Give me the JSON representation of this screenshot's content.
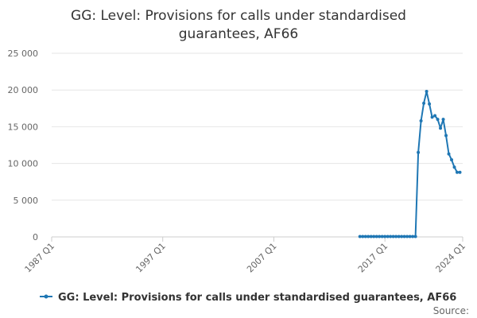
{
  "chart_data": {
    "type": "line",
    "title_lines": [
      "GG: Level: Provisions for calls under standardised",
      "guarantees, AF66"
    ],
    "xlabel": "",
    "ylabel": "",
    "x_range": [
      "1987 Q1",
      "2024 Q1"
    ],
    "x_tick_labels": [
      "1987 Q1",
      "1997 Q1",
      "2007 Q1",
      "2017 Q1",
      "2024 Q1"
    ],
    "y_ticks": [
      0,
      5000,
      10000,
      15000,
      20000,
      25000
    ],
    "y_tick_labels": [
      "0",
      "5 000",
      "10 000",
      "15 000",
      "20 000",
      "25 000"
    ],
    "ylim": [
      0,
      25000
    ],
    "grid": true,
    "legend_position": "bottom-center",
    "source_label": "Source:",
    "series": [
      {
        "name": "GG: Level: Provisions for calls under standardised guarantees, AF66",
        "color": "#1f77b4",
        "points": [
          [
            "2014 Q4",
            60
          ],
          [
            "2015 Q1",
            60
          ],
          [
            "2015 Q2",
            60
          ],
          [
            "2015 Q3",
            60
          ],
          [
            "2015 Q4",
            60
          ],
          [
            "2016 Q1",
            60
          ],
          [
            "2016 Q2",
            60
          ],
          [
            "2016 Q3",
            60
          ],
          [
            "2016 Q4",
            60
          ],
          [
            "2017 Q1",
            60
          ],
          [
            "2017 Q2",
            60
          ],
          [
            "2017 Q3",
            60
          ],
          [
            "2017 Q4",
            60
          ],
          [
            "2018 Q1",
            60
          ],
          [
            "2018 Q2",
            60
          ],
          [
            "2018 Q3",
            60
          ],
          [
            "2018 Q4",
            60
          ],
          [
            "2019 Q1",
            60
          ],
          [
            "2019 Q2",
            60
          ],
          [
            "2019 Q3",
            60
          ],
          [
            "2019 Q4",
            60
          ],
          [
            "2020 Q1",
            11500
          ],
          [
            "2020 Q2",
            15800
          ],
          [
            "2020 Q3",
            18200
          ],
          [
            "2020 Q4",
            19800
          ],
          [
            "2021 Q1",
            18100
          ],
          [
            "2021 Q2",
            16300
          ],
          [
            "2021 Q3",
            16500
          ],
          [
            "2021 Q4",
            16000
          ],
          [
            "2022 Q1",
            14800
          ],
          [
            "2022 Q2",
            16000
          ],
          [
            "2022 Q3",
            13800
          ],
          [
            "2022 Q4",
            11300
          ],
          [
            "2023 Q1",
            10500
          ],
          [
            "2023 Q2",
            9500
          ],
          [
            "2023 Q3",
            8800
          ],
          [
            "2023 Q4",
            8800
          ]
        ]
      }
    ]
  }
}
